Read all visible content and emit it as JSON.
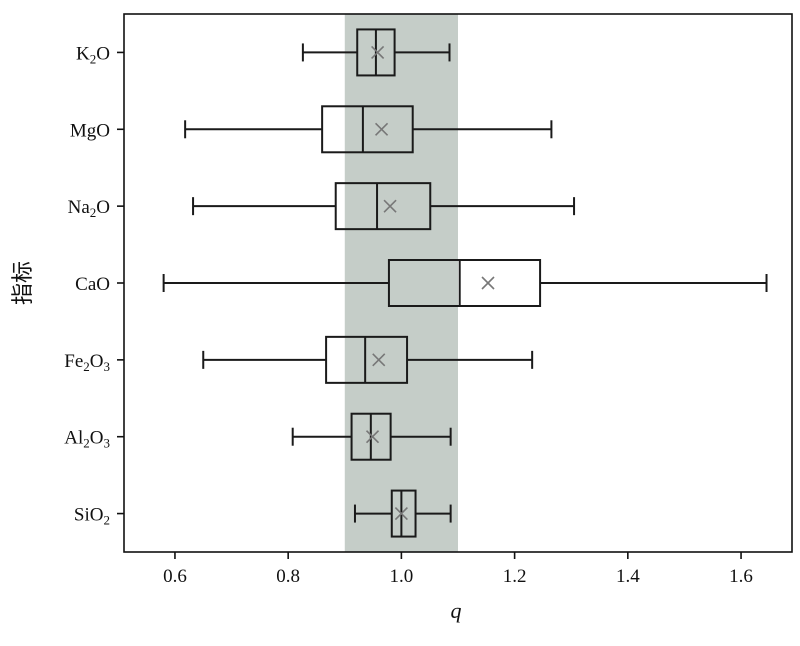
{
  "chart_data": {
    "type": "boxplot",
    "orientation": "horizontal",
    "xlabel": "q",
    "ylabel": "指标",
    "xlim": [
      0.51,
      1.69
    ],
    "xticks": [
      "0.6",
      "0.8",
      "1.0",
      "1.2",
      "1.4",
      "1.6"
    ],
    "xtick_values": [
      0.6,
      0.8,
      1.0,
      1.2,
      1.4,
      1.6
    ],
    "reference_band": {
      "from": 0.9,
      "to": 1.1,
      "color": "#c5cdc8"
    },
    "colors": {
      "box_stroke": "#1a1a1a",
      "mean_marker": "#777777"
    },
    "categories": [
      {
        "label_main": "K",
        "label_sub": "2",
        "label_tail": "O",
        "min": 0.826,
        "q1": 0.922,
        "median": 0.955,
        "q3": 0.988,
        "max": 1.085,
        "mean": 0.958
      },
      {
        "label_main": "MgO",
        "label_sub": "",
        "label_tail": "",
        "min": 0.618,
        "q1": 0.86,
        "median": 0.932,
        "q3": 1.02,
        "max": 1.265,
        "mean": 0.965
      },
      {
        "label_main": "Na",
        "label_sub": "2",
        "label_tail": "O",
        "min": 0.632,
        "q1": 0.884,
        "median": 0.957,
        "q3": 1.051,
        "max": 1.305,
        "mean": 0.98
      },
      {
        "label_main": "CaO",
        "label_sub": "",
        "label_tail": "",
        "min": 0.58,
        "q1": 0.978,
        "median": 1.103,
        "q3": 1.245,
        "max": 1.645,
        "mean": 1.153
      },
      {
        "label_main": "Fe",
        "label_sub": "2",
        "label_tail": "O",
        "label_sub2": "3",
        "min": 0.65,
        "q1": 0.867,
        "median": 0.936,
        "q3": 1.01,
        "max": 1.231,
        "mean": 0.96
      },
      {
        "label_main": "Al",
        "label_sub": "2",
        "label_tail": "O",
        "label_sub2": "3",
        "min": 0.808,
        "q1": 0.912,
        "median": 0.946,
        "q3": 0.981,
        "max": 1.087,
        "mean": 0.949
      },
      {
        "label_main": "SiO",
        "label_sub": "2",
        "label_tail": "",
        "min": 0.918,
        "q1": 0.983,
        "median": 1.0,
        "q3": 1.025,
        "max": 1.087,
        "mean": 1.0
      }
    ]
  }
}
